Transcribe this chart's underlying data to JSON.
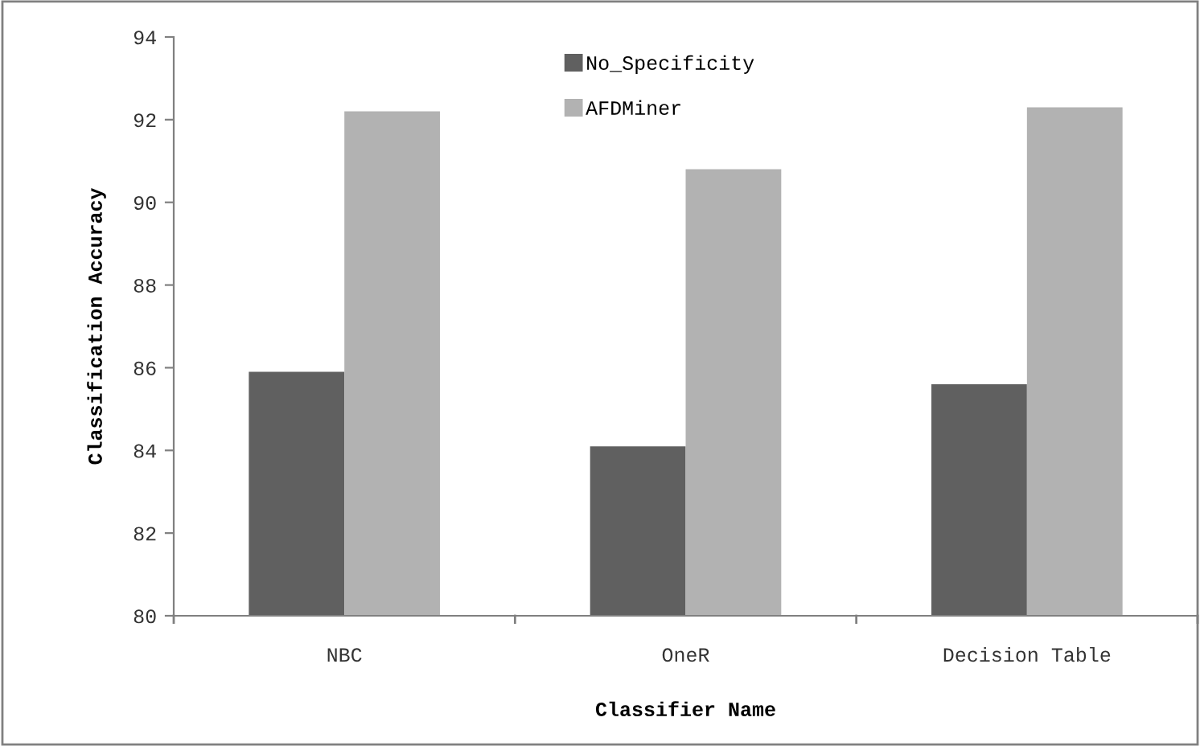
{
  "chart_data": {
    "type": "bar",
    "xlabel": "Classifier Name",
    "ylabel": "Classification Accuracy",
    "categories": [
      "NBC",
      "OneR",
      "Decision Table"
    ],
    "series": [
      {
        "name": "No_Specificity",
        "color": "#606060",
        "values": [
          85.9,
          84.1,
          85.6
        ]
      },
      {
        "name": "AFDMiner",
        "color": "#b2b2b2",
        "values": [
          92.2,
          90.8,
          92.3
        ]
      }
    ],
    "ylim": [
      80,
      94
    ],
    "yticks": [
      80,
      82,
      84,
      86,
      88,
      90,
      92,
      94
    ],
    "grid": false,
    "legend": "top"
  }
}
